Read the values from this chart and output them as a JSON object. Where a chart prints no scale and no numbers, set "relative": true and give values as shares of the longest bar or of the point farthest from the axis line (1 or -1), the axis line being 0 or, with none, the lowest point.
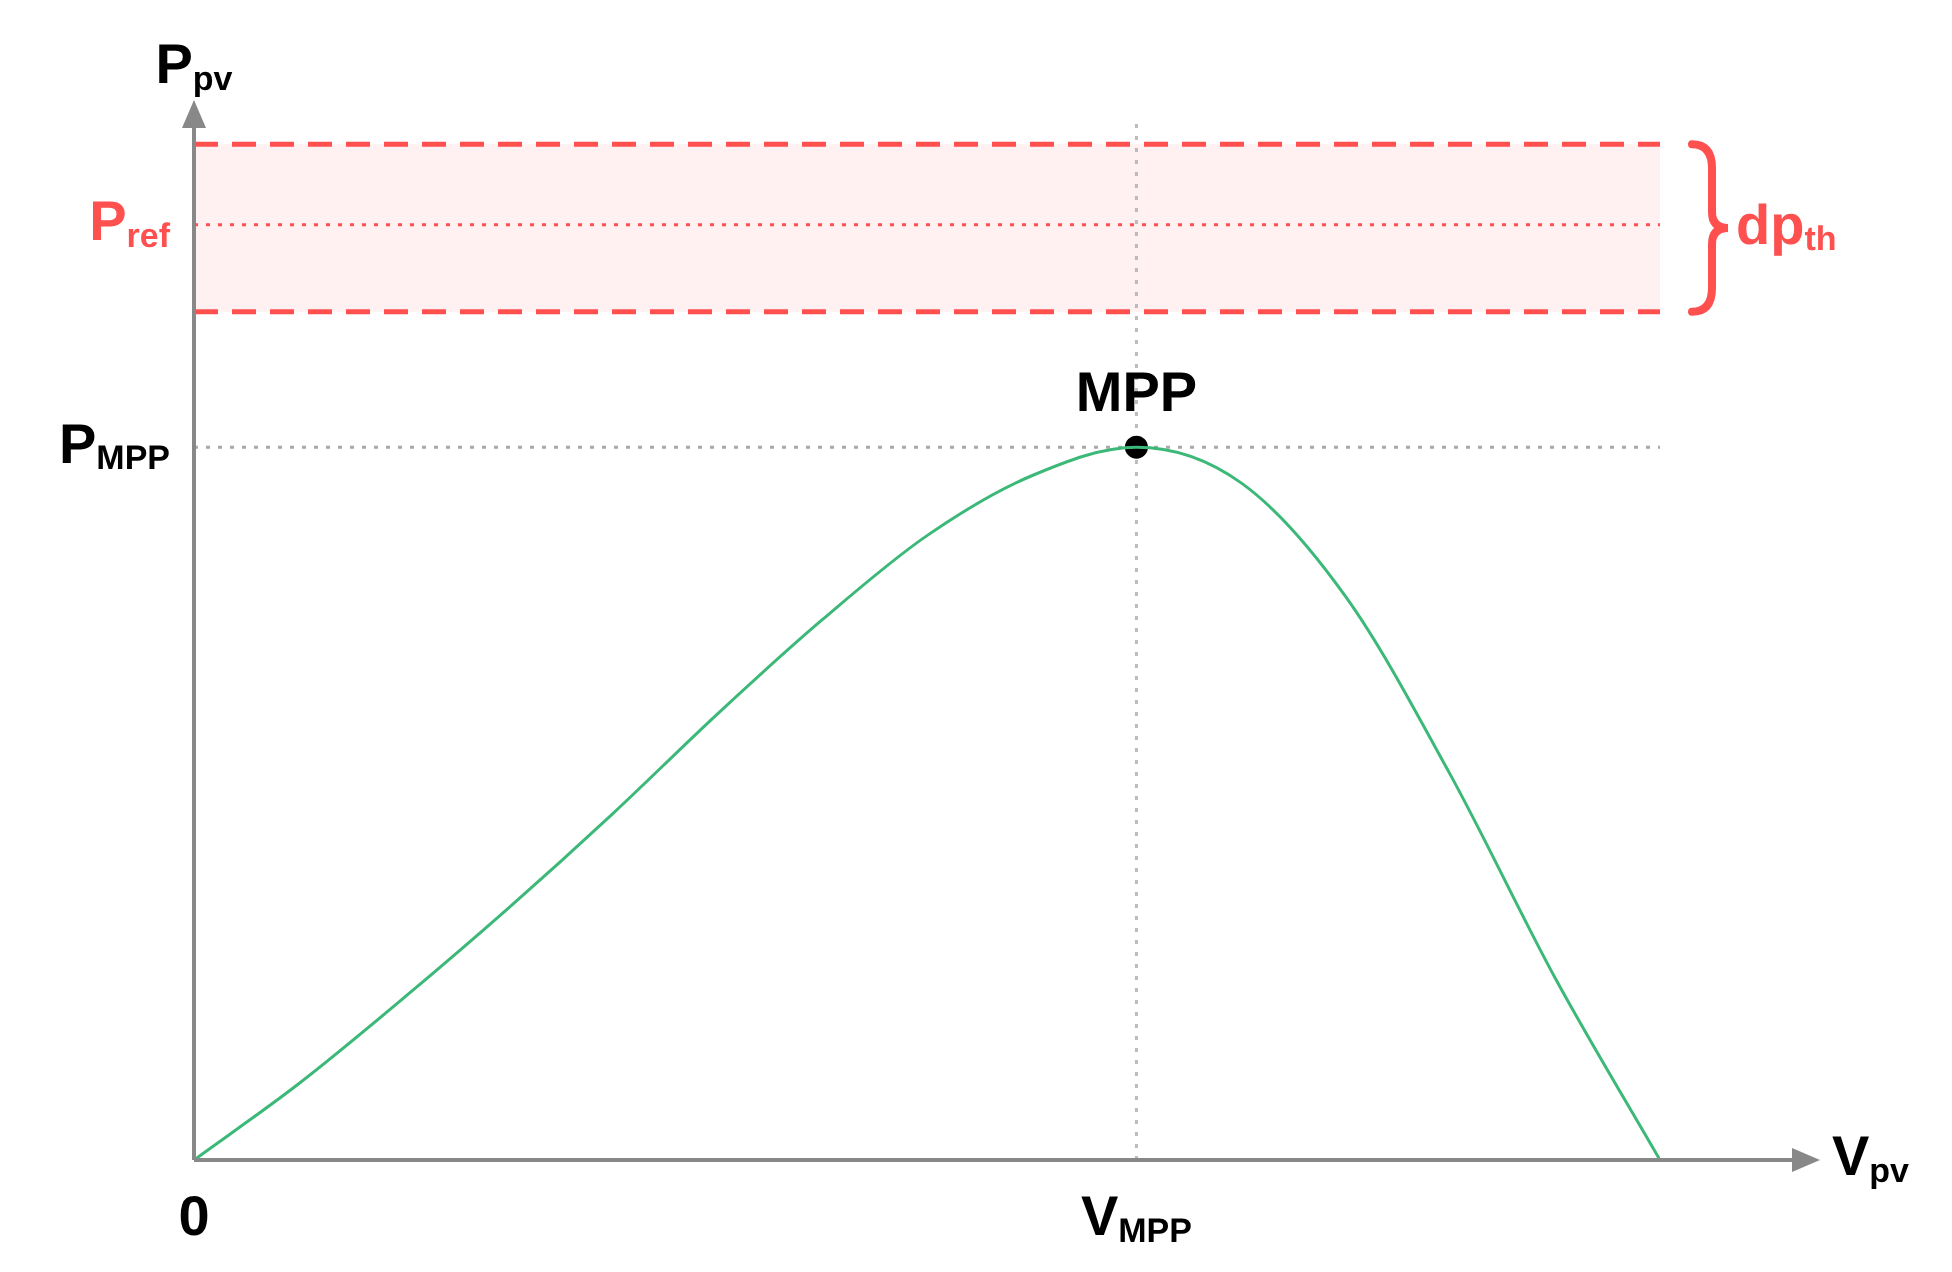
{
  "chart_data": {
    "type": "line",
    "relative": true,
    "xlabel": "V$_{pv}$",
    "categories": [
      "0",
      null,
      null,
      null,
      null,
      null,
      null,
      null,
      null,
      "V$_{MPP}$",
      null,
      null,
      null,
      null,
      null
    ],
    "series": [
      {
        "color": "#3cb878",
        "marker": "none",
        "values": [
          0,
          0.107,
          0.227,
          0.353,
          0.486,
          0.626,
          0.758,
          0.876,
          0.96,
          1,
          0.95,
          0.79,
          0.54,
          0.255,
          0
        ]
      },
      {
        "type": "scatter",
        "color": "#000000",
        "marker": "circle",
        "x": [
          "V$_{MPP}$"
        ],
        "values": [
          1
        ]
      }
    ],
    "ref_lines": [
      {
        "axis": "y",
        "value": 1.312,
        "label": "P$_{ref}$",
        "color": "#ff5050",
        "line_style": "dotted"
      },
      {
        "axis": "x",
        "value": "V$_{MPP}$",
        "label": null,
        "color": "#bbbbbb",
        "line_style": "dotted"
      },
      {
        "axis": "y",
        "value": 1,
        "label": "P$_{MPP}$",
        "line_style": "dotted"
      }
    ],
    "bands": [
      {
        "axis": "y",
        "from": 1.19,
        "to": 1.425,
        "label": "dp$_{th}$",
        "color": "#ff5050"
      }
    ],
    "annotations": [
      {
        "text": "MPP",
        "x": "V$_{MPP}$",
        "y": 1
      },
      "P$_{pv}$"
    ]
  }
}
